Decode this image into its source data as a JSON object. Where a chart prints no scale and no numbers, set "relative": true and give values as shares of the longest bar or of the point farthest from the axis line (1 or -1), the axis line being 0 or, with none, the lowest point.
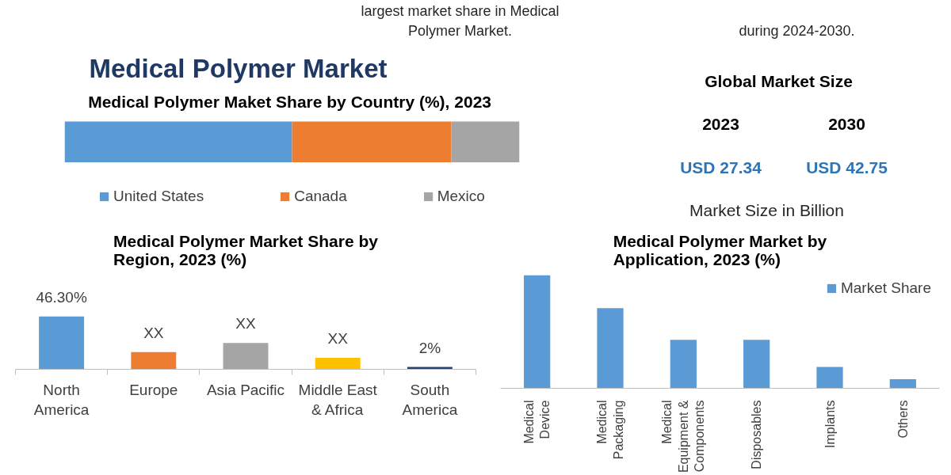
{
  "chart_data": [
    {
      "type": "other",
      "annotations": [
        "largest market share in Medical Polymer Market.",
        "during 2024-2030."
      ]
    },
    {
      "type": "bar",
      "title": "Medical Polymer Market",
      "subtitle": "Medical Polymer Maket Share by Country  (%), 2023",
      "categories": [
        null
      ],
      "orientation": "horizontal",
      "stacked": true,
      "relative": true,
      "series": [
        {
          "name": "United States",
          "color": "#5b9bd5",
          "values": [
            0.5
          ]
        },
        {
          "name": "Canada",
          "color": "#ed7d31",
          "values": [
            0.35
          ]
        },
        {
          "name": "Mexico",
          "color": "#a5a5a5",
          "values": [
            0.15
          ]
        }
      ],
      "legend": "bottom"
    },
    {
      "type": "other",
      "title": "Global Market Size",
      "annotations": [
        "2023",
        "2030",
        "USD 27.34",
        "USD 42.75",
        "Market Size in Billion"
      ]
    },
    {
      "type": "bar",
      "title": "Medical Polymer Market Share by Region, 2023 (%)",
      "categories": [
        "North America",
        "Europe",
        "Asia Pacific",
        "Middle East & Africa",
        "South America"
      ],
      "values": [
        46.3,
        15,
        23,
        10,
        2
      ],
      "colors": [
        "#5b9bd5",
        "#ed7d31",
        "#a5a5a5",
        "#ffc000",
        "#264478"
      ],
      "value_labels": [
        "46.30%",
        "XX",
        "XX",
        "XX",
        "2%"
      ],
      "tick_labels": "x"
    },
    {
      "type": "bar",
      "title": "Medical Polymer Market by Application, 2023 (%)",
      "categories": [
        "Medical Device",
        "Medical Packaging",
        "Medical Equipment & Components",
        "Disposables",
        "Implants",
        "Others"
      ],
      "series": [
        {
          "name": "Market Share",
          "color": "#5b9bd5",
          "values": [
            1,
            0.71,
            0.43,
            0.43,
            0.19,
            0.08
          ]
        }
      ],
      "relative": true,
      "legend": "top right"
    }
  ]
}
